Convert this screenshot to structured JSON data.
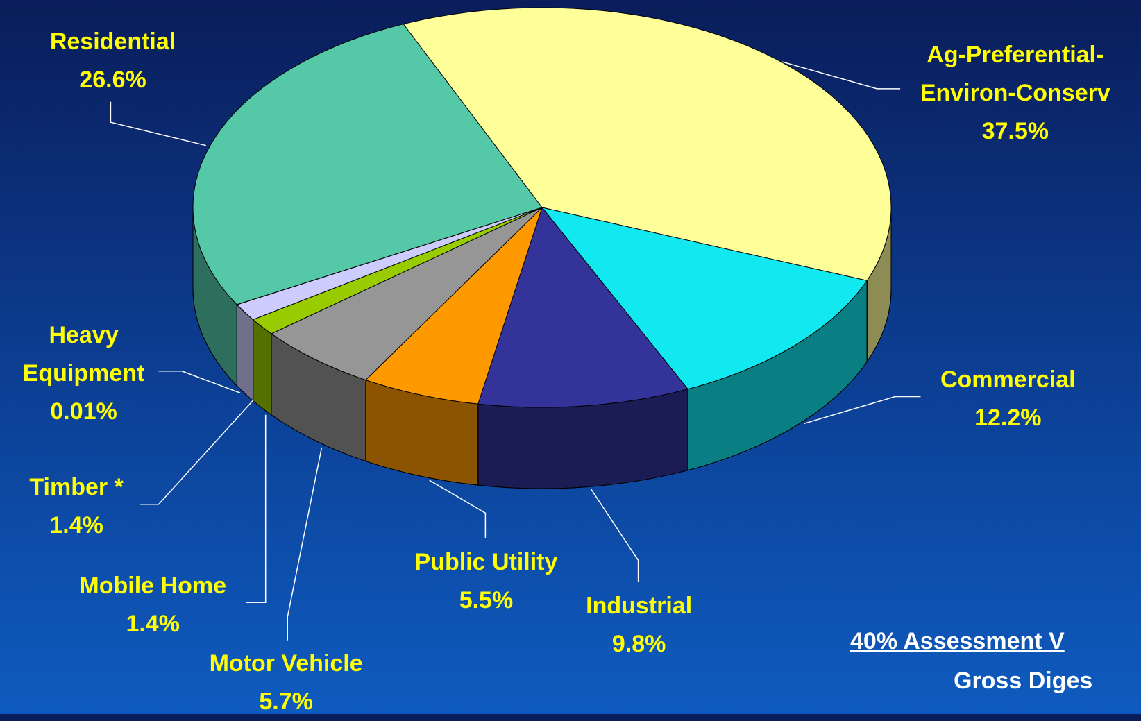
{
  "chart_data": {
    "type": "pie",
    "categories": [
      "Ag-Preferential-Environ-Conserv",
      "Commercial",
      "Industrial",
      "Public Utility",
      "Motor Vehicle",
      "Mobile Home",
      "Timber *",
      "Heavy Equipment",
      "Residential"
    ],
    "values": [
      37.5,
      12.2,
      9.8,
      5.5,
      5.7,
      1.4,
      1.4,
      0.01,
      26.6
    ],
    "value_labels": [
      "37.5%",
      "12.2%",
      "9.8%",
      "5.5%",
      "5.7%",
      "1.4%",
      "1.4%",
      "0.01%",
      "26.6%"
    ],
    "colors": [
      "#ffff99",
      "#11e8f0",
      "#333399",
      "#ff9900",
      "#969696",
      "#99cc00",
      "#ccccff",
      "#9999cc",
      "#55c8a8"
    ],
    "notes": [
      "40% Assessment V",
      "Gross Diges"
    ]
  }
}
